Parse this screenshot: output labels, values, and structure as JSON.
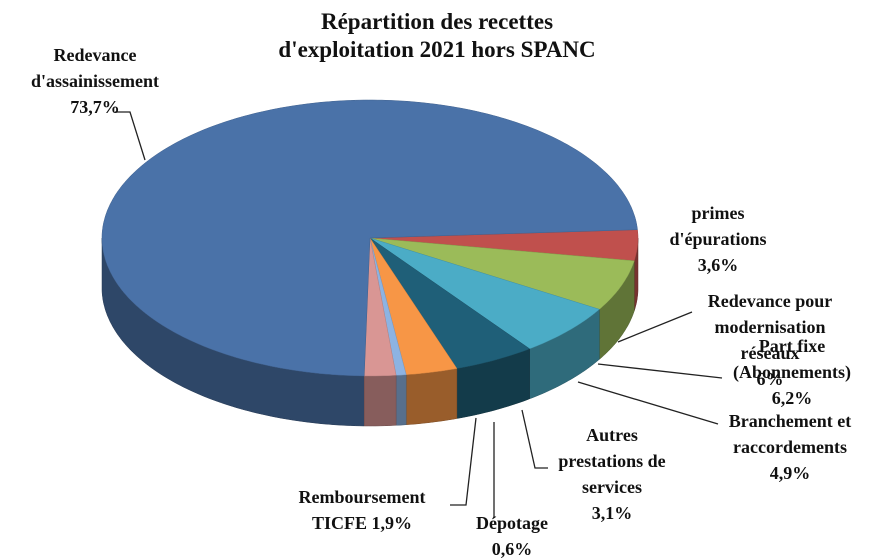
{
  "chart_data": {
    "type": "pie3d",
    "title": "Répartition des recettes d'exploitation 2021 hors SPANC",
    "categories": [
      "primes d'épurations",
      "Redevance pour modernisation réseaux",
      "Part fixe (Abonnements)",
      "Branchement et raccordements",
      "Autres prestations de services",
      "Dépotage",
      "Remboursement TICFE",
      "Redevance d'assainissement"
    ],
    "values": [
      3.6,
      6,
      6.2,
      4.9,
      3.1,
      0.6,
      1.9,
      73.7
    ],
    "value_labels": [
      "3,6%",
      "6%",
      "6,2%",
      "4,9%",
      "3,1%",
      "0,6%",
      "1,9%",
      "73,7%"
    ],
    "colors": [
      "#c0504d",
      "#9bbb59",
      "#4bacc6",
      "#1f5f78",
      "#f79646",
      "#8db3e2",
      "#d99694",
      "#4a72a8"
    ]
  }
}
